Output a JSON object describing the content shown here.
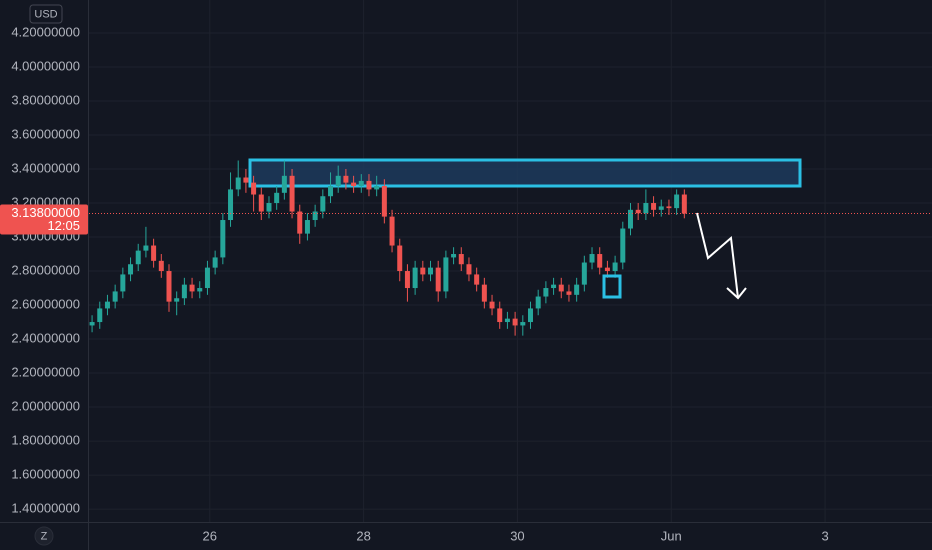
{
  "chart_data": {
    "type": "candlestick",
    "currency": "USD",
    "scale_button": "Z",
    "x": [
      24.47,
      24.57,
      24.67,
      24.77,
      24.87,
      24.97,
      25.07,
      25.17,
      25.27,
      25.37,
      25.47,
      25.57,
      25.67,
      25.77,
      25.87,
      25.97,
      26.07,
      26.17,
      26.27,
      26.37,
      26.47,
      26.57,
      26.67,
      26.77,
      26.87,
      26.97,
      27.07,
      27.17,
      27.27,
      27.37,
      27.47,
      27.57,
      27.67,
      27.77,
      27.87,
      27.97,
      28.07,
      28.17,
      28.27,
      28.37,
      28.47,
      28.57,
      28.67,
      28.77,
      28.87,
      28.97,
      29.07,
      29.17,
      29.27,
      29.37,
      29.47,
      29.57,
      29.67,
      29.77,
      29.87,
      29.97,
      30.07,
      30.17,
      30.27,
      30.37,
      30.47,
      30.57,
      30.67,
      30.77,
      30.87,
      30.97,
      31.07,
      31.17,
      31.27,
      31.37,
      31.47,
      31.57,
      31.67,
      31.77,
      31.87,
      31.97,
      32.07,
      32.17
    ],
    "open": [
      2.48,
      2.5,
      2.58,
      2.62,
      2.68,
      2.78,
      2.84,
      2.92,
      2.95,
      2.86,
      2.8,
      2.62,
      2.64,
      2.72,
      2.68,
      2.7,
      2.82,
      2.88,
      3.1,
      3.28,
      3.35,
      3.32,
      3.25,
      3.15,
      3.2,
      3.26,
      3.36,
      3.15,
      3.02,
      3.1,
      3.15,
      3.24,
      3.3,
      3.36,
      3.32,
      3.3,
      3.33,
      3.28,
      3.3,
      3.12,
      2.95,
      2.8,
      2.7,
      2.82,
      2.78,
      2.82,
      2.68,
      2.88,
      2.9,
      2.84,
      2.78,
      2.72,
      2.62,
      2.58,
      2.5,
      2.52,
      2.48,
      2.5,
      2.58,
      2.65,
      2.7,
      2.72,
      2.68,
      2.66,
      2.72,
      2.85,
      2.9,
      2.82,
      2.8,
      2.85,
      3.05,
      3.16,
      3.14,
      3.2,
      3.16,
      3.18,
      3.17,
      3.25
    ],
    "high": [
      2.54,
      2.62,
      2.66,
      2.72,
      2.82,
      2.88,
      2.96,
      3.06,
      2.99,
      2.9,
      2.84,
      2.68,
      2.76,
      2.76,
      2.74,
      2.86,
      2.92,
      3.14,
      3.38,
      3.45,
      3.4,
      3.36,
      3.29,
      3.24,
      3.3,
      3.45,
      3.4,
      3.19,
      3.14,
      3.19,
      3.28,
      3.38,
      3.42,
      3.4,
      3.36,
      3.37,
      3.37,
      3.36,
      3.34,
      3.16,
      2.99,
      2.84,
      2.86,
      2.86,
      2.86,
      2.86,
      2.92,
      2.94,
      2.94,
      2.88,
      2.82,
      2.76,
      2.66,
      2.62,
      2.56,
      2.56,
      2.54,
      2.62,
      2.69,
      2.74,
      2.76,
      2.76,
      2.72,
      2.76,
      2.89,
      2.94,
      2.94,
      2.86,
      2.89,
      3.09,
      3.2,
      3.2,
      3.28,
      3.24,
      3.22,
      3.22,
      3.28,
      3.28
    ],
    "low": [
      2.44,
      2.46,
      2.54,
      2.58,
      2.64,
      2.74,
      2.8,
      2.88,
      2.82,
      2.76,
      2.56,
      2.54,
      2.6,
      2.64,
      2.64,
      2.66,
      2.78,
      2.84,
      3.06,
      3.24,
      3.26,
      3.15,
      3.1,
      3.11,
      3.16,
      3.22,
      3.11,
      2.96,
      2.98,
      3.06,
      3.11,
      3.2,
      3.26,
      3.28,
      3.26,
      3.26,
      3.24,
      3.24,
      3.08,
      2.91,
      2.74,
      2.62,
      2.66,
      2.74,
      2.74,
      2.62,
      2.64,
      2.84,
      2.8,
      2.74,
      2.68,
      2.58,
      2.54,
      2.46,
      2.46,
      2.42,
      2.42,
      2.46,
      2.54,
      2.61,
      2.66,
      2.64,
      2.62,
      2.62,
      2.68,
      2.81,
      2.78,
      2.76,
      2.76,
      2.81,
      3.01,
      3.1,
      3.1,
      3.12,
      3.12,
      3.13,
      3.13,
      3.11
    ],
    "close": [
      2.5,
      2.58,
      2.62,
      2.68,
      2.78,
      2.84,
      2.92,
      2.95,
      2.86,
      2.8,
      2.62,
      2.64,
      2.72,
      2.68,
      2.7,
      2.82,
      2.88,
      3.1,
      3.28,
      3.35,
      3.32,
      3.25,
      3.15,
      3.2,
      3.26,
      3.36,
      3.15,
      3.02,
      3.1,
      3.15,
      3.24,
      3.3,
      3.36,
      3.32,
      3.3,
      3.33,
      3.28,
      3.3,
      3.12,
      2.95,
      2.8,
      2.7,
      2.82,
      2.78,
      2.82,
      2.68,
      2.88,
      2.9,
      2.84,
      2.78,
      2.72,
      2.62,
      2.58,
      2.5,
      2.52,
      2.48,
      2.5,
      2.58,
      2.65,
      2.7,
      2.72,
      2.68,
      2.66,
      2.72,
      2.85,
      2.9,
      2.82,
      2.8,
      2.85,
      3.05,
      3.16,
      3.14,
      3.2,
      3.16,
      3.18,
      3.17,
      3.25,
      3.138
    ],
    "up_color": "#26a69a",
    "down_color": "#ef5350",
    "last_price": {
      "value": 3.138,
      "label": "3.13800000"
    },
    "countdown": "12:05",
    "xlim": [
      24.43,
      35.39
    ],
    "xticks": [
      26,
      28,
      30,
      {
        "value": 32,
        "label": "Jun"
      },
      {
        "value": 34,
        "label": "3"
      }
    ],
    "ylim": [
      1.324,
      4.394
    ],
    "yticks": [
      {
        "value": 1.4,
        "label": "1.40000000"
      },
      {
        "value": 1.6,
        "label": "1.60000000"
      },
      {
        "value": 1.8,
        "label": "1.80000000"
      },
      {
        "value": 2.0,
        "label": "2.00000000"
      },
      {
        "value": 2.2,
        "label": "2.20000000"
      },
      {
        "value": 2.4,
        "label": "2.40000000"
      },
      {
        "value": 2.6,
        "label": "2.60000000"
      },
      {
        "value": 2.8,
        "label": "2.80000000"
      },
      {
        "value": 3.0,
        "label": "3.00000000"
      },
      {
        "value": 3.2,
        "label": "3.20000000"
      },
      {
        "value": 3.4,
        "label": "3.40000000"
      },
      {
        "value": 3.6,
        "label": "3.60000000"
      },
      {
        "value": 3.8,
        "label": "3.80000000"
      },
      {
        "value": 4.0,
        "label": "4.00000000"
      },
      {
        "value": 4.2,
        "label": "4.20000000"
      }
    ],
    "grid": true
  }
}
